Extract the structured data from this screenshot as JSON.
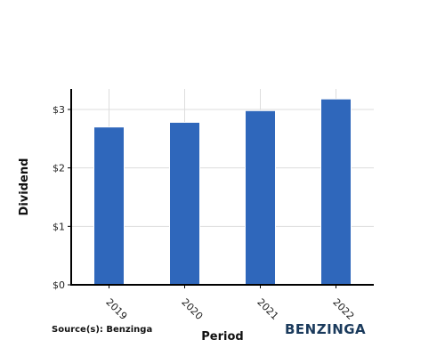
{
  "chart_data": {
    "type": "bar",
    "categories": [
      "2019",
      "2020",
      "2021",
      "2022"
    ],
    "values": [
      2.7,
      2.78,
      2.98,
      3.18
    ],
    "ylabel": "Dividend",
    "xlabel": "Period",
    "ylim": [
      0,
      3.35
    ],
    "yticks": [
      0,
      1,
      2,
      3
    ],
    "ytick_labels": [
      "$0",
      "$1",
      "$2",
      "$3"
    ],
    "grid": true,
    "bar_color": "#2f67bb",
    "grid_color": "#dddddd"
  },
  "footer": {
    "source": "Source(s): Benzinga",
    "brand": "BENZINGA"
  }
}
